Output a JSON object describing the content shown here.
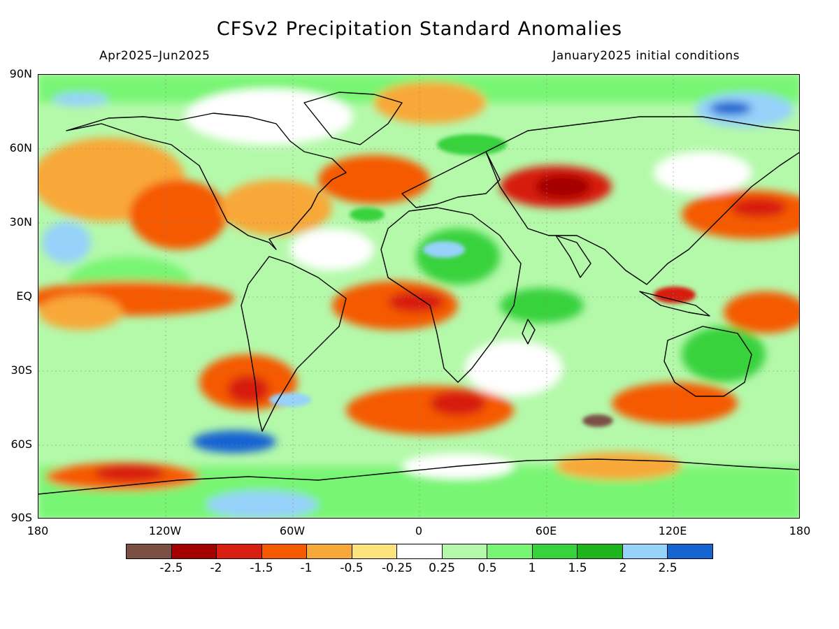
{
  "header": {
    "title": "CFSv2 Precipitation Standard Anomalies",
    "period": "Apr2025–Jun2025",
    "init": "January2025 initial conditions"
  },
  "map": {
    "lat_labels": [
      "90N",
      "60N",
      "30N",
      "EQ",
      "30S",
      "60S",
      "90S"
    ],
    "lon_labels": [
      "180",
      "120W",
      "60W",
      "0",
      "60E",
      "120E",
      "180"
    ]
  },
  "legend": {
    "colors": [
      "#7a5045",
      "#a50000",
      "#d71e10",
      "#f55a00",
      "#f8a838",
      "#fbe47e",
      "#ffffff",
      "#b4f9aa",
      "#78f573",
      "#37d23c",
      "#1eb41e",
      "#96d2fa",
      "#1464d2"
    ],
    "labels": [
      "-2.5",
      "-2",
      "-1.5",
      "-1",
      "-0.5",
      "-0.25",
      "0.25",
      "0.5",
      "1",
      "1.5",
      "2",
      "2.5"
    ]
  }
}
